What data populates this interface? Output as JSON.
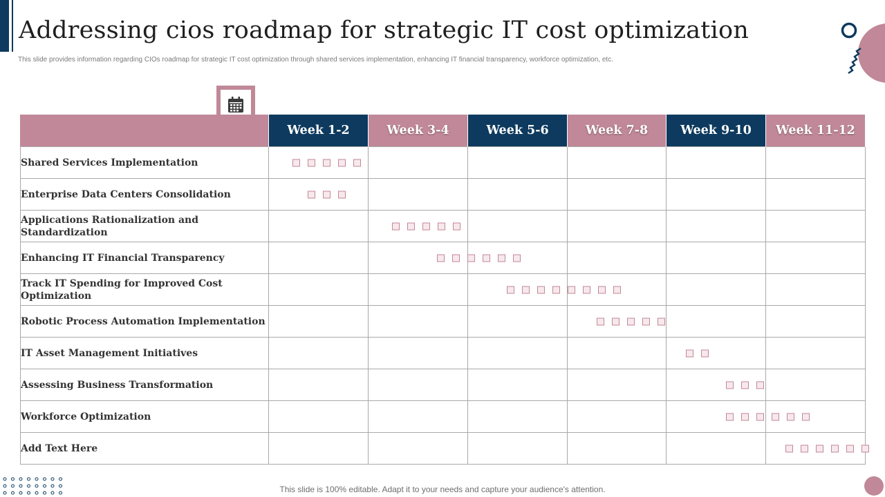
{
  "title": "Addressing cios roadmap for strategic IT cost optimization",
  "subtitle": "This slide provides information regarding CIOs  roadmap  for strategic IT cost optimization  through shared services implementation,  enhancing IT  financial transparency, workforce optimization, etc.",
  "columns": [
    {
      "label": "Week 1-2",
      "color": "#0d3a5e"
    },
    {
      "label": "Week 3-4",
      "color": "#c08898"
    },
    {
      "label": "Week 5-6",
      "color": "#0d3a5e"
    },
    {
      "label": "Week 7-8",
      "color": "#c08898"
    },
    {
      "label": "Week 9-10",
      "color": "#0d3a5e"
    },
    {
      "label": "Week 11-12",
      "color": "#c08898"
    }
  ],
  "tasks": [
    {
      "label": "Shared Services Implementation",
      "start_week": 1.2,
      "markers": 5
    },
    {
      "label": "Enterprise Data Centers Consolidation",
      "start_week": 1.5,
      "markers": 3
    },
    {
      "label": "Applications Rationalization and Standardization",
      "start_week": 3.2,
      "markers": 5
    },
    {
      "label": "Enhancing IT Financial Transparency",
      "start_week": 4.1,
      "markers": 6
    },
    {
      "label": "Track IT Spending for Improved Cost Optimization",
      "start_week": 5.5,
      "markers": 8
    },
    {
      "label": "Robotic Process Automation Implementation",
      "start_week": 7.3,
      "markers": 5
    },
    {
      "label": "IT Asset Management Initiatives",
      "start_week": 9.1,
      "markers": 2
    },
    {
      "label": "Assessing Business Transformation",
      "start_week": 9.9,
      "markers": 3
    },
    {
      "label": "Workforce Optimization",
      "start_week": 9.9,
      "markers": 6
    },
    {
      "label": "Add Text Here",
      "start_week": 11.1,
      "markers": 6
    }
  ],
  "icon": "calendar-icon",
  "colors": {
    "navy": "#0d3a5e",
    "mauve": "#c08898",
    "marker_fill": "#f7e8ec"
  },
  "footer": "This slide is 100% editable. Adapt it to your needs and capture your audience's attention."
}
